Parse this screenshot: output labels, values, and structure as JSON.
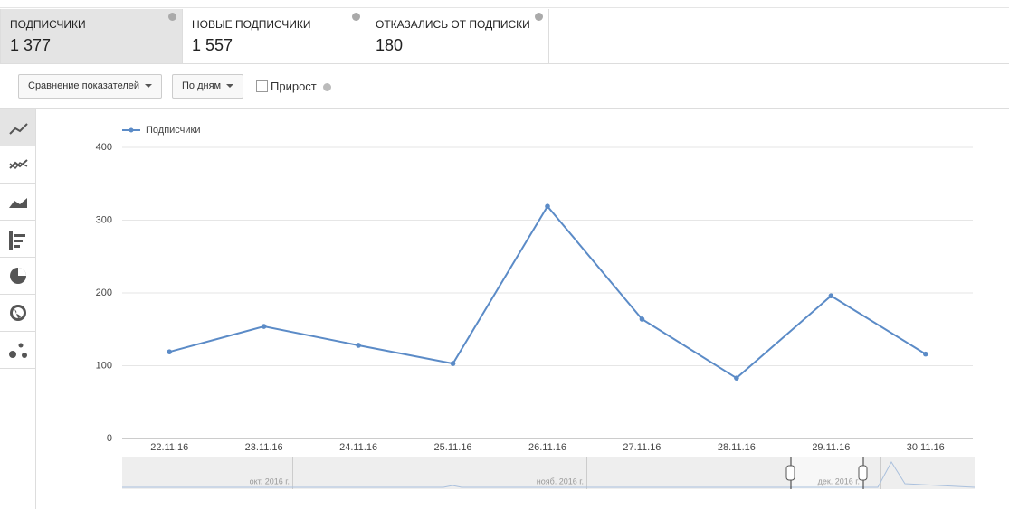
{
  "tabs": [
    {
      "label": "ПОДПИСЧИКИ",
      "value": "1 377"
    },
    {
      "label": "НОВЫЕ ПОДПИСЧИКИ",
      "value": "1 557"
    },
    {
      "label": "ОТКАЗАЛИСЬ ОТ ПОДПИСКИ",
      "value": "180"
    }
  ],
  "toolbar": {
    "compare": "Сравнение показателей",
    "period": "По дням",
    "growth": "Прирост"
  },
  "navigator": {
    "labels": [
      "окт. 2016 г.",
      "нояб. 2016 г.",
      "дек. 2016 г."
    ]
  },
  "chart_data": {
    "type": "line",
    "categories": [
      "22.11.16",
      "23.11.16",
      "24.11.16",
      "25.11.16",
      "26.11.16",
      "27.11.16",
      "28.11.16",
      "29.11.16",
      "30.11.16"
    ],
    "series": [
      {
        "name": "Подписчики",
        "color": "#5b8bc7",
        "values": [
          119,
          154,
          128,
          103,
          319,
          164,
          83,
          196,
          116
        ]
      }
    ],
    "ylim": [
      0,
      400
    ],
    "yticks": [
      0,
      100,
      200,
      300,
      400
    ],
    "grid": true
  }
}
